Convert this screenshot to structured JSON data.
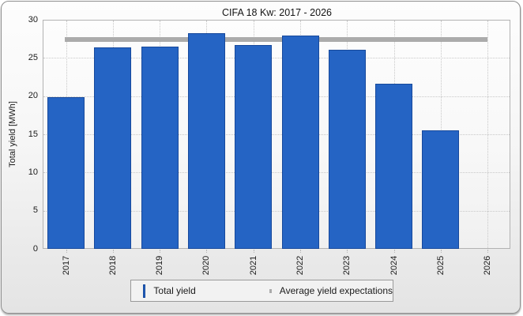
{
  "window_title": "CIFA 18 Kw: 2017 - 2026",
  "chart_data": {
    "type": "bar",
    "title": "CIFA 18 Kw: 2017 - 2026",
    "xlabel": "",
    "ylabel": "Total yield [MWh]",
    "ylim": [
      0,
      30
    ],
    "yticks": [
      0,
      5,
      10,
      15,
      20,
      25,
      30
    ],
    "grid": "dotted",
    "legend_position": "bottom",
    "categories": [
      "2017",
      "2018",
      "2019",
      "2020",
      "2021",
      "2022",
      "2023",
      "2024",
      "2025",
      "2026"
    ],
    "series": [
      {
        "name": "Total yield",
        "type": "bar",
        "values": [
          19.9,
          26.4,
          26.5,
          28.2,
          26.7,
          27.9,
          26.1,
          21.6,
          15.5,
          null
        ],
        "color": "#2564c4",
        "border_color": "#17499c"
      },
      {
        "name": "Average yield expectations",
        "type": "line",
        "value": 27.4,
        "color": "#ababab"
      }
    ],
    "legend": [
      {
        "label": "Total yield",
        "swatch": "square"
      },
      {
        "label": "Average yield expectations",
        "swatch": "line"
      }
    ]
  },
  "colors": {
    "bar_fill": "#2564c4",
    "bar_border": "#17499c",
    "average_line": "#ababab",
    "grid": "#c8c8c8",
    "plot_border": "#b2b2b2",
    "frame_border": "#8f8f8f",
    "text": "#1b1b1b"
  }
}
